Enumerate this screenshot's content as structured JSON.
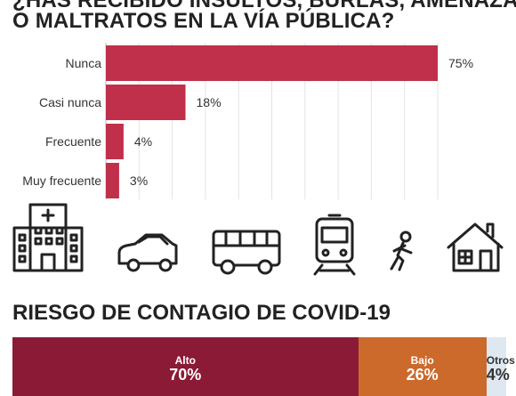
{
  "header": {
    "title_line1": "¿HAS RECIBIDO INSULTOS, BURLAS, AMENAZAS",
    "title_line2": "O MALTRATOS EN LA VÍA PÚBLICA?"
  },
  "chart_data": [
    {
      "type": "bar",
      "orientation": "horizontal",
      "categories": [
        "Nunca",
        "Casi nunca",
        "Frecuente",
        "Muy frecuente"
      ],
      "values": [
        75,
        18,
        4,
        3
      ],
      "value_labels": [
        "75%",
        "18%",
        "4%",
        "3%"
      ],
      "xlim": [
        0,
        75
      ],
      "grid": true,
      "color": "#c0304a"
    },
    {
      "type": "bar",
      "orientation": "horizontal-stacked",
      "title": "RIESGO DE CONTAGIO DE COVID-19",
      "categories": [
        "Alto",
        "Bajo",
        "Otros"
      ],
      "values": [
        70,
        26,
        4
      ],
      "value_labels": [
        "70%",
        "26%",
        "4%"
      ],
      "colors": [
        "#8a1a35",
        "#cc6a2c",
        "#dfe8f0"
      ]
    }
  ],
  "icons": [
    "hospital-icon",
    "car-icon",
    "bus-icon",
    "train-icon",
    "walking-person-icon",
    "house-icon"
  ]
}
